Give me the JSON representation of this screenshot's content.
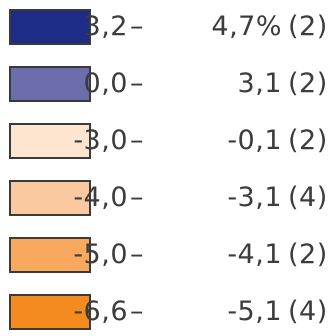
{
  "chart_data": {
    "type": "legend",
    "classes": [
      {
        "from": "3,2",
        "to": "4,7%",
        "count": "(2)",
        "color": "#1d2c86"
      },
      {
        "from": "0,0",
        "to": "3,1",
        "count": "(2)",
        "color": "#6c6dab"
      },
      {
        "from": "-3,0",
        "to": "-0,1",
        "count": "(2)",
        "color": "#fde5cf"
      },
      {
        "from": "-4,0",
        "to": "-3,1",
        "count": "(4)",
        "color": "#fbc9a0"
      },
      {
        "from": "-5,0",
        "to": "-4,1",
        "count": "(2)",
        "color": "#f8a95d"
      },
      {
        "from": "-6,6",
        "to": "-5,1",
        "count": "(4)",
        "color": "#f48b1e"
      }
    ],
    "dash": "–"
  }
}
